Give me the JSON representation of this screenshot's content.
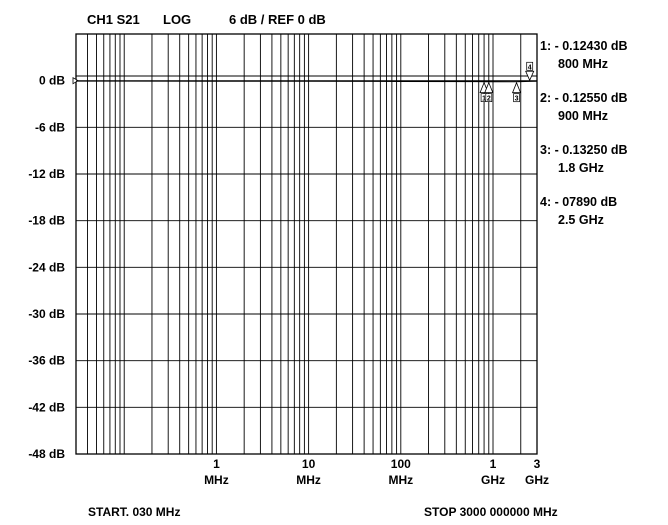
{
  "header": {
    "channel": "CH1 S21",
    "format": "LOG",
    "scale": "6 dB / REF 0 dB"
  },
  "chart_data": {
    "type": "line",
    "title": "CH1 S21   LOG   6 dB / REF 0 dB",
    "xscale": "log",
    "xlim_mhz": [
      0.03,
      3000
    ],
    "ylim_db": [
      -48,
      6
    ],
    "grid": true,
    "reference_level_db": 0,
    "y_ticks": [
      {
        "value": 0,
        "label": "0 dB"
      },
      {
        "value": -6,
        "label": "-6 dB"
      },
      {
        "value": -12,
        "label": "-12 dB"
      },
      {
        "value": -18,
        "label": "-18 dB"
      },
      {
        "value": -24,
        "label": "-24 dB"
      },
      {
        "value": -30,
        "label": "-30 dB"
      },
      {
        "value": -36,
        "label": "-36 dB"
      },
      {
        "value": -42,
        "label": "-42 dB"
      },
      {
        "value": -48,
        "label": "-48 dB"
      }
    ],
    "x_ticks": [
      {
        "value_mhz": 1,
        "num": "1",
        "unit": "MHz"
      },
      {
        "value_mhz": 10,
        "num": "10",
        "unit": "MHz"
      },
      {
        "value_mhz": 100,
        "num": "100",
        "unit": "MHz"
      },
      {
        "value_mhz": 1000,
        "num": "1",
        "unit": "GHz"
      },
      {
        "value_mhz": 3000,
        "num": "3",
        "unit": "GHz"
      }
    ],
    "series": [
      {
        "x_mhz": [
          0.03,
          1,
          10,
          100,
          700,
          800,
          900,
          1800,
          2500,
          3000
        ],
        "y_db": [
          -0.05,
          -0.06,
          -0.07,
          -0.09,
          -0.11,
          -0.1243,
          -0.1255,
          -0.1325,
          -0.0789,
          -0.07
        ]
      }
    ],
    "markers": [
      {
        "id": "1",
        "freq_mhz": 800,
        "value_text": "1: - 0.12430 dB",
        "freq_text": "800 MHz"
      },
      {
        "id": "2",
        "freq_mhz": 900,
        "value_text": "2: - 0.12550 dB",
        "freq_text": "900 MHz"
      },
      {
        "id": "3",
        "freq_mhz": 1800,
        "value_text": "3: - 0.13250 dB",
        "freq_text": "1.8 GHz"
      },
      {
        "id": "4",
        "freq_mhz": 2500,
        "value_text": "4: - 07890 dB",
        "freq_text": "2.5 GHz"
      }
    ]
  },
  "footer": {
    "start": "START. 030 MHz",
    "stop": "STOP  3000 000000 MHz"
  }
}
